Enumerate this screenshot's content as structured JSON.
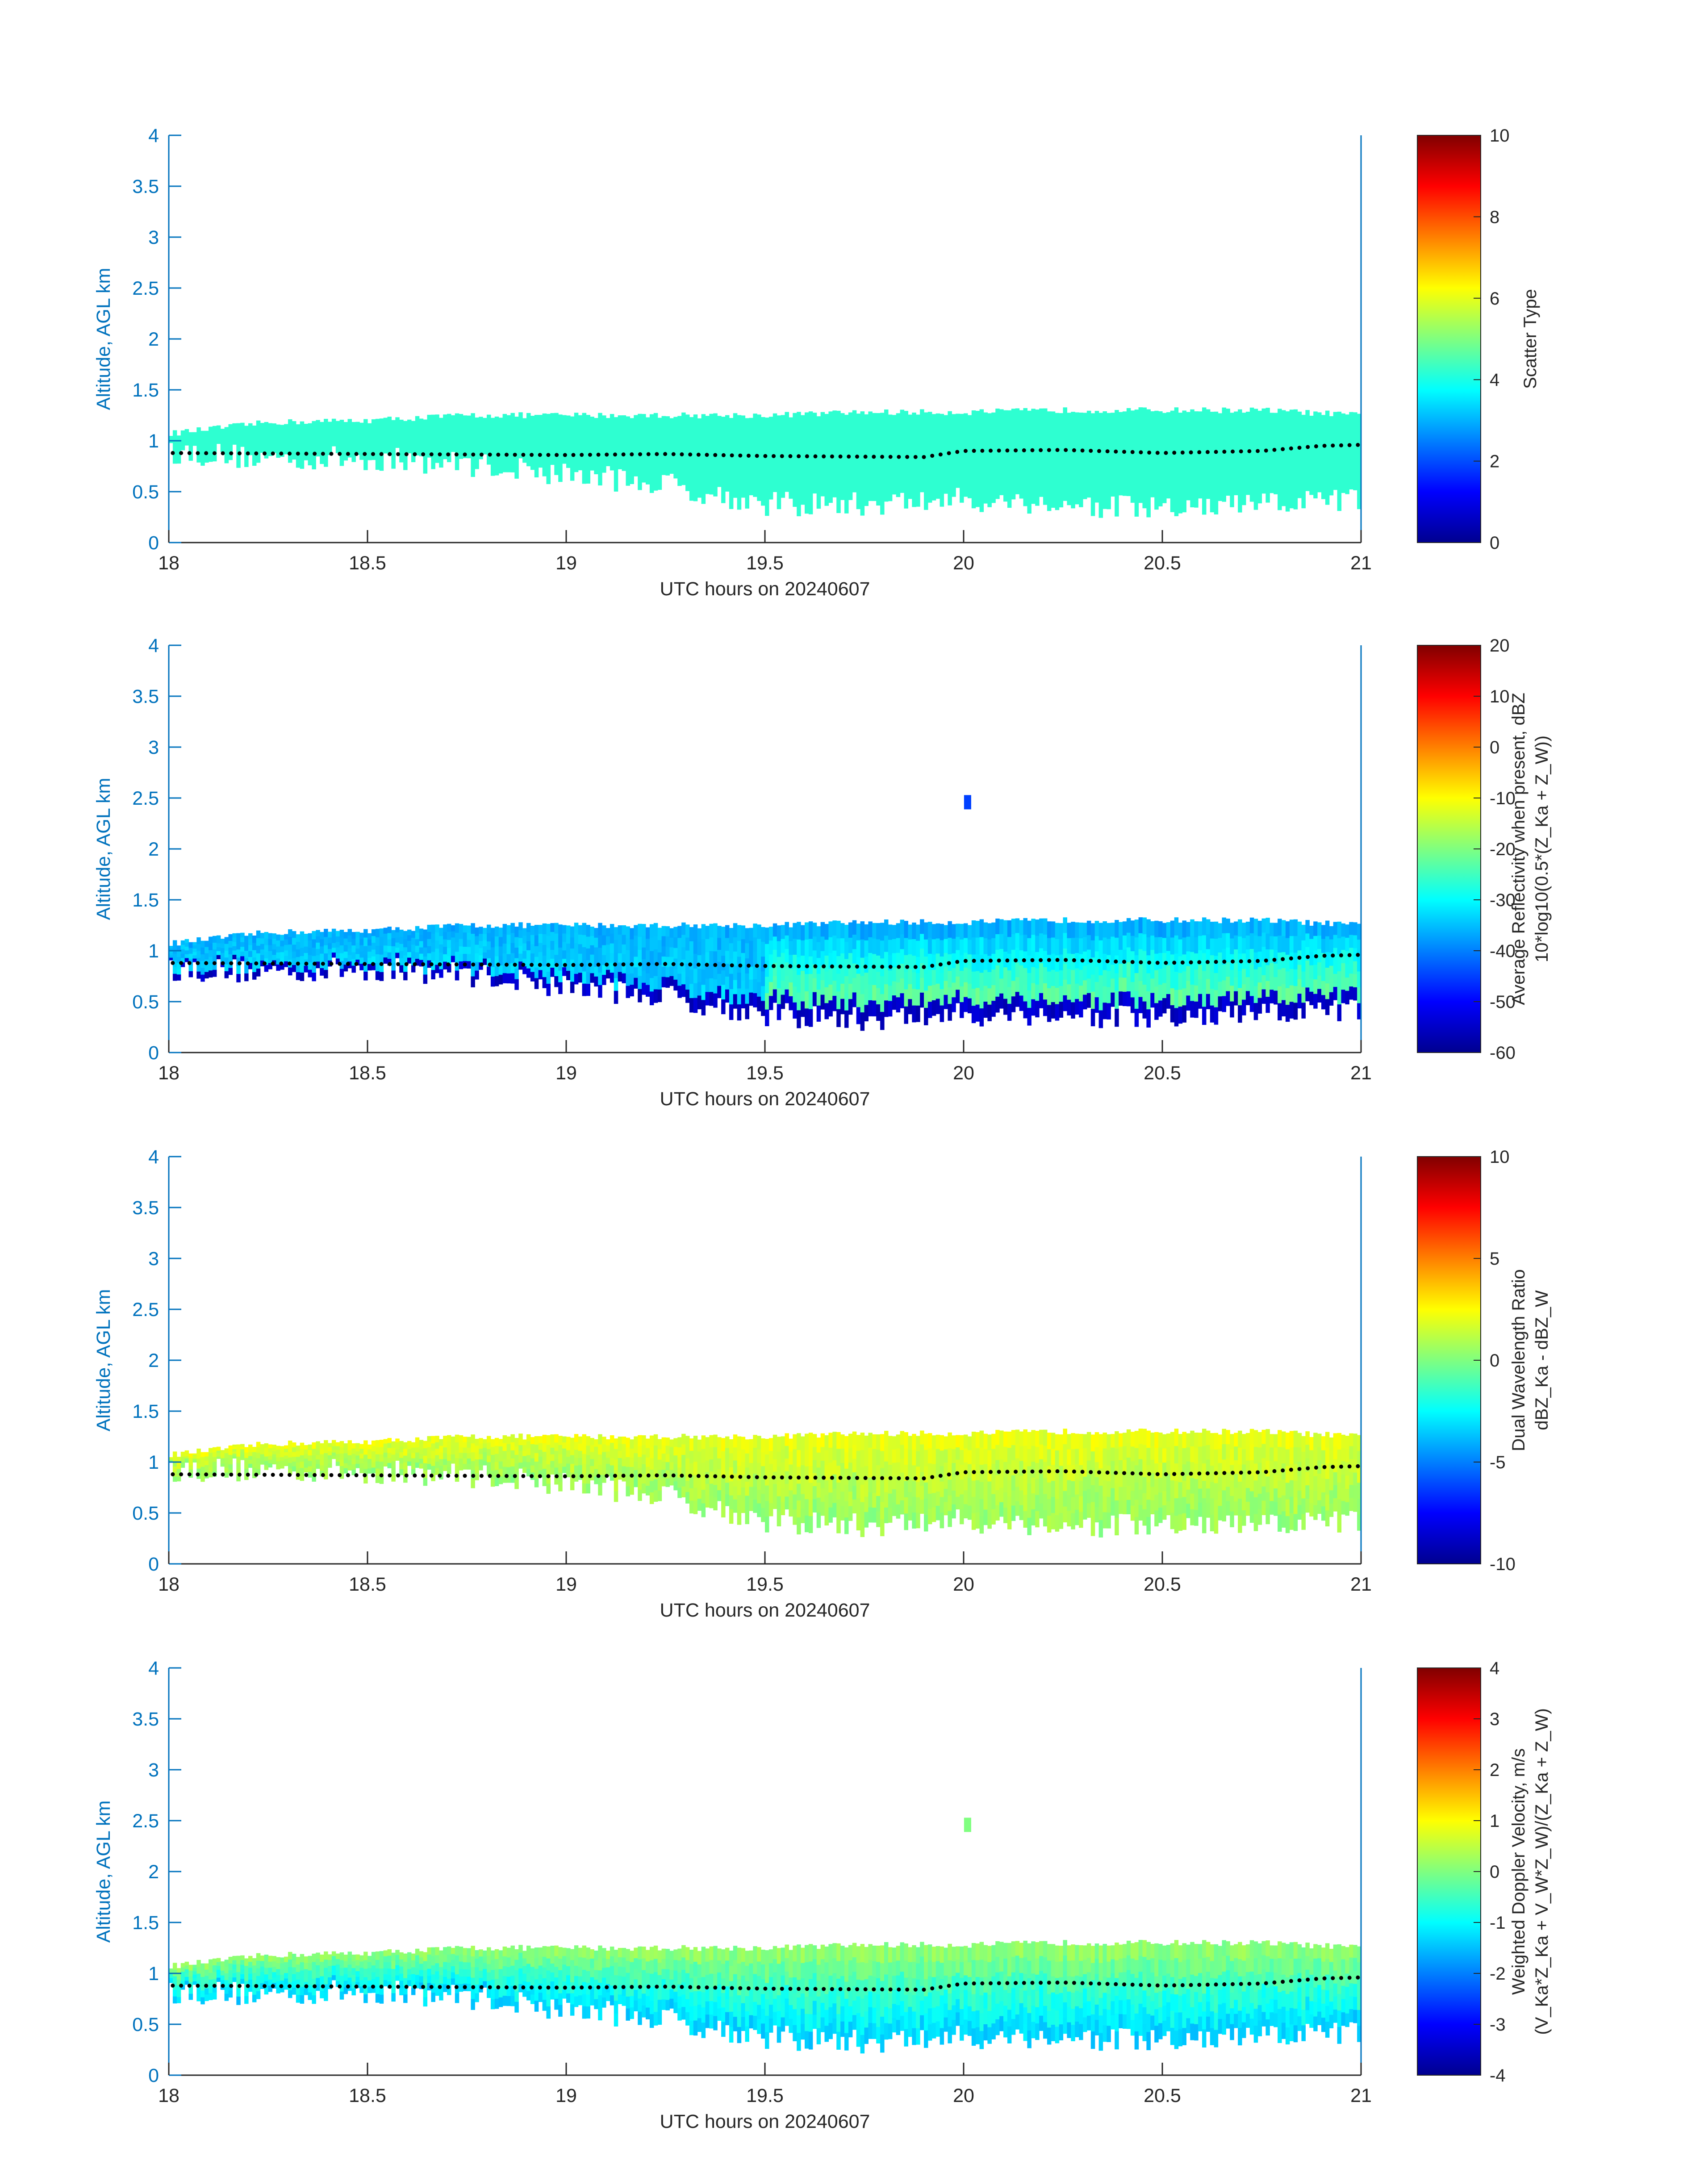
{
  "chart_data": [
    {
      "type": "heatmap",
      "title": "",
      "xlabel": "UTC hours on 20240607",
      "ylabel": "Altitude, AGL km",
      "xlim": [
        18,
        21
      ],
      "ylim": [
        0,
        4
      ],
      "x_ticks": [
        "18",
        "18.5",
        "19",
        "19.5",
        "20",
        "20.5",
        "21"
      ],
      "y_ticks": [
        "0",
        "0.5",
        "1",
        "1.5",
        "2",
        "2.5",
        "3",
        "3.5",
        "4"
      ],
      "colorbar": {
        "label_lines": [
          "Scatter Type"
        ],
        "range": [
          0,
          10
        ],
        "ticks": [
          "0",
          "2",
          "4",
          "6",
          "8",
          "10"
        ]
      },
      "field_description": "uniform scatter type value about 4 between cloud base and top",
      "field_value": 4.2,
      "layer": {
        "hours": [
          18,
          18.25,
          18.5,
          18.75,
          19,
          19.25,
          19.5,
          19.75,
          20,
          20.25,
          20.5,
          20.75,
          21
        ],
        "top_km": [
          1.07,
          1.18,
          1.2,
          1.25,
          1.25,
          1.25,
          1.25,
          1.28,
          1.28,
          1.3,
          1.3,
          1.3,
          1.25
        ],
        "base_km": [
          0.82,
          0.75,
          0.75,
          0.7,
          0.6,
          0.5,
          0.3,
          0.3,
          0.35,
          0.3,
          0.25,
          0.3,
          0.35
        ]
      },
      "cloud_base_dots": {
        "hours": [
          18,
          18.5,
          19,
          19.25,
          19.5,
          19.9,
          20,
          20.25,
          20.5,
          20.75,
          20.9,
          21
        ],
        "altitude_km": [
          0.88,
          0.87,
          0.86,
          0.87,
          0.85,
          0.84,
          0.9,
          0.91,
          0.88,
          0.9,
          0.95,
          0.96
        ]
      }
    },
    {
      "type": "heatmap",
      "title": "",
      "xlabel": "UTC hours on 20240607",
      "ylabel": "Altitude, AGL km",
      "xlim": [
        18,
        21
      ],
      "ylim": [
        0,
        4
      ],
      "x_ticks": [
        "18",
        "18.5",
        "19",
        "19.5",
        "20",
        "20.5",
        "21"
      ],
      "y_ticks": [
        "0",
        "0.5",
        "1",
        "1.5",
        "2",
        "2.5",
        "3",
        "3.5",
        "4"
      ],
      "colorbar": {
        "label_lines": [
          "Average Reflectivity when present, dBZ",
          "10*log10(0.5*(Z_Ka + Z_W))"
        ],
        "range": [
          -60,
          20
        ],
        "ticks": [
          "-60",
          "-50",
          "-40",
          "-30",
          "-20",
          "-10",
          "0",
          "10",
          "20"
        ]
      },
      "field_description": "cyan near top (-35 dBZ), green-yellow middle after 19.5 h (-20 dBZ), dark blue at base (-55 dBZ)",
      "field_values": {
        "top": -36,
        "middle_early": -33,
        "middle_late": -20,
        "base_edge": -55
      },
      "isolated_echo": {
        "hour": 20.01,
        "altitude_km": 2.45,
        "value": -45
      },
      "layer": {
        "hours": [
          18,
          18.25,
          18.5,
          18.75,
          19,
          19.25,
          19.5,
          19.75,
          20,
          20.25,
          20.5,
          20.75,
          21
        ],
        "top_km": [
          1.07,
          1.18,
          1.2,
          1.25,
          1.25,
          1.25,
          1.25,
          1.28,
          1.28,
          1.3,
          1.3,
          1.3,
          1.25
        ],
        "base_km": [
          0.75,
          0.72,
          0.75,
          0.7,
          0.58,
          0.48,
          0.3,
          0.25,
          0.3,
          0.3,
          0.25,
          0.3,
          0.35
        ]
      },
      "cloud_base_dots": {
        "hours": [
          18,
          18.5,
          19,
          19.25,
          19.5,
          19.9,
          20,
          20.25,
          20.5,
          20.75,
          20.9,
          21
        ],
        "altitude_km": [
          0.88,
          0.87,
          0.86,
          0.87,
          0.85,
          0.84,
          0.9,
          0.91,
          0.88,
          0.9,
          0.95,
          0.96
        ]
      }
    },
    {
      "type": "heatmap",
      "title": "",
      "xlabel": "UTC hours on 20240607",
      "ylabel": "Altitude, AGL km",
      "xlim": [
        18,
        21
      ],
      "ylim": [
        0,
        4
      ],
      "x_ticks": [
        "18",
        "18.5",
        "19",
        "19.5",
        "20",
        "20.5",
        "21"
      ],
      "y_ticks": [
        "0",
        "0.5",
        "1",
        "1.5",
        "2",
        "2.5",
        "3",
        "3.5",
        "4"
      ],
      "colorbar": {
        "label_lines": [
          "Dual Wavelength Ratio",
          "dBZ_Ka - dBZ_W"
        ],
        "range": [
          -10,
          10
        ],
        "ticks": [
          "-10",
          "-5",
          "0",
          "5",
          "10"
        ]
      },
      "field_description": "mostly yellow (2 dB) near top, light green (0 dB) lower",
      "field_values": {
        "top": 2,
        "lower": 0.5
      },
      "layer": {
        "hours": [
          18,
          18.25,
          18.5,
          18.75,
          19,
          19.25,
          19.5,
          19.75,
          20,
          20.25,
          20.5,
          20.75,
          21
        ],
        "top_km": [
          1.07,
          1.18,
          1.2,
          1.25,
          1.25,
          1.25,
          1.25,
          1.28,
          1.28,
          1.3,
          1.3,
          1.3,
          1.25
        ],
        "base_km": [
          0.85,
          0.85,
          0.83,
          0.8,
          0.72,
          0.6,
          0.35,
          0.3,
          0.35,
          0.3,
          0.3,
          0.3,
          0.35
        ]
      },
      "cloud_base_dots": {
        "hours": [
          18,
          18.5,
          19,
          19.25,
          19.5,
          19.9,
          20,
          20.25,
          20.5,
          20.75,
          20.9,
          21
        ],
        "altitude_km": [
          0.88,
          0.87,
          0.86,
          0.87,
          0.85,
          0.84,
          0.9,
          0.91,
          0.88,
          0.9,
          0.95,
          0.96
        ]
      }
    },
    {
      "type": "heatmap",
      "title": "",
      "xlabel": "UTC hours on 20240607",
      "ylabel": "Altitude, AGL km",
      "xlim": [
        18,
        21
      ],
      "ylim": [
        0,
        4
      ],
      "x_ticks": [
        "18",
        "18.5",
        "19",
        "19.5",
        "20",
        "20.5",
        "21"
      ],
      "y_ticks": [
        "0",
        "0.5",
        "1",
        "1.5",
        "2",
        "2.5",
        "3",
        "3.5",
        "4"
      ],
      "colorbar": {
        "label_lines": [
          "Weighted Doppler Velocity, m/s",
          "(V_Ka*Z_Ka + V_W*Z_W)/(Z_Ka + Z_W)"
        ],
        "range": [
          -4,
          4
        ],
        "ticks": [
          "-4",
          "-3",
          "-2",
          "-1",
          "0",
          "1",
          "2",
          "3",
          "4"
        ]
      },
      "field_description": "light green near top (0 m/s), cyan below (-1.3 m/s)",
      "field_values": {
        "top": 0.1,
        "lower": -1.3
      },
      "isolated_echo": {
        "hour": 20.01,
        "altitude_km": 2.45,
        "value": 0.0
      },
      "layer": {
        "hours": [
          18,
          18.25,
          18.5,
          18.75,
          19,
          19.25,
          19.5,
          19.75,
          20,
          20.25,
          20.5,
          20.75,
          21
        ],
        "top_km": [
          1.07,
          1.18,
          1.2,
          1.25,
          1.25,
          1.25,
          1.25,
          1.28,
          1.28,
          1.3,
          1.3,
          1.3,
          1.25
        ],
        "base_km": [
          0.75,
          0.72,
          0.75,
          0.7,
          0.58,
          0.48,
          0.3,
          0.25,
          0.3,
          0.3,
          0.25,
          0.3,
          0.35
        ]
      },
      "cloud_base_dots": {
        "hours": [
          18,
          18.5,
          19,
          19.25,
          19.5,
          19.9,
          20,
          20.25,
          20.5,
          20.75,
          20.9,
          21
        ],
        "altitude_km": [
          0.88,
          0.87,
          0.86,
          0.87,
          0.85,
          0.84,
          0.9,
          0.91,
          0.88,
          0.9,
          0.95,
          0.96
        ]
      }
    }
  ]
}
